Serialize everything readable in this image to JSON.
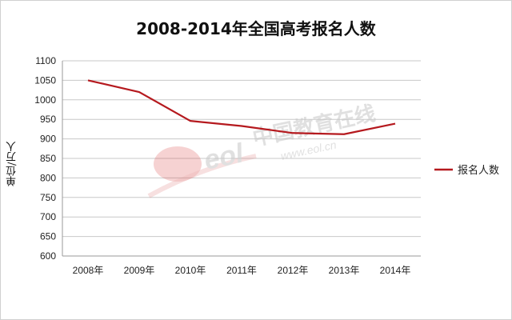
{
  "chart_data": {
    "type": "line",
    "title": "2008-2014年全国高考报名人数",
    "ylabel": "单位/万人",
    "xlabel": "",
    "categories": [
      "2008年",
      "2009年",
      "2010年",
      "2011年",
      "2012年",
      "2013年",
      "2014年"
    ],
    "series": [
      {
        "name": "报名人数",
        "values": [
          1050,
          1020,
          946,
          933,
          915,
          912,
          939
        ]
      }
    ],
    "ylim": [
      600,
      1100
    ],
    "yticks": [
      600,
      650,
      700,
      750,
      800,
      850,
      900,
      950,
      1000,
      1050,
      1100
    ],
    "grid": true,
    "legend_position": "right",
    "line_color": "#b5191e"
  },
  "watermark": {
    "logo_text": "eol",
    "cn_text": "中国教育在线",
    "url_text": "www.eol.cn"
  }
}
